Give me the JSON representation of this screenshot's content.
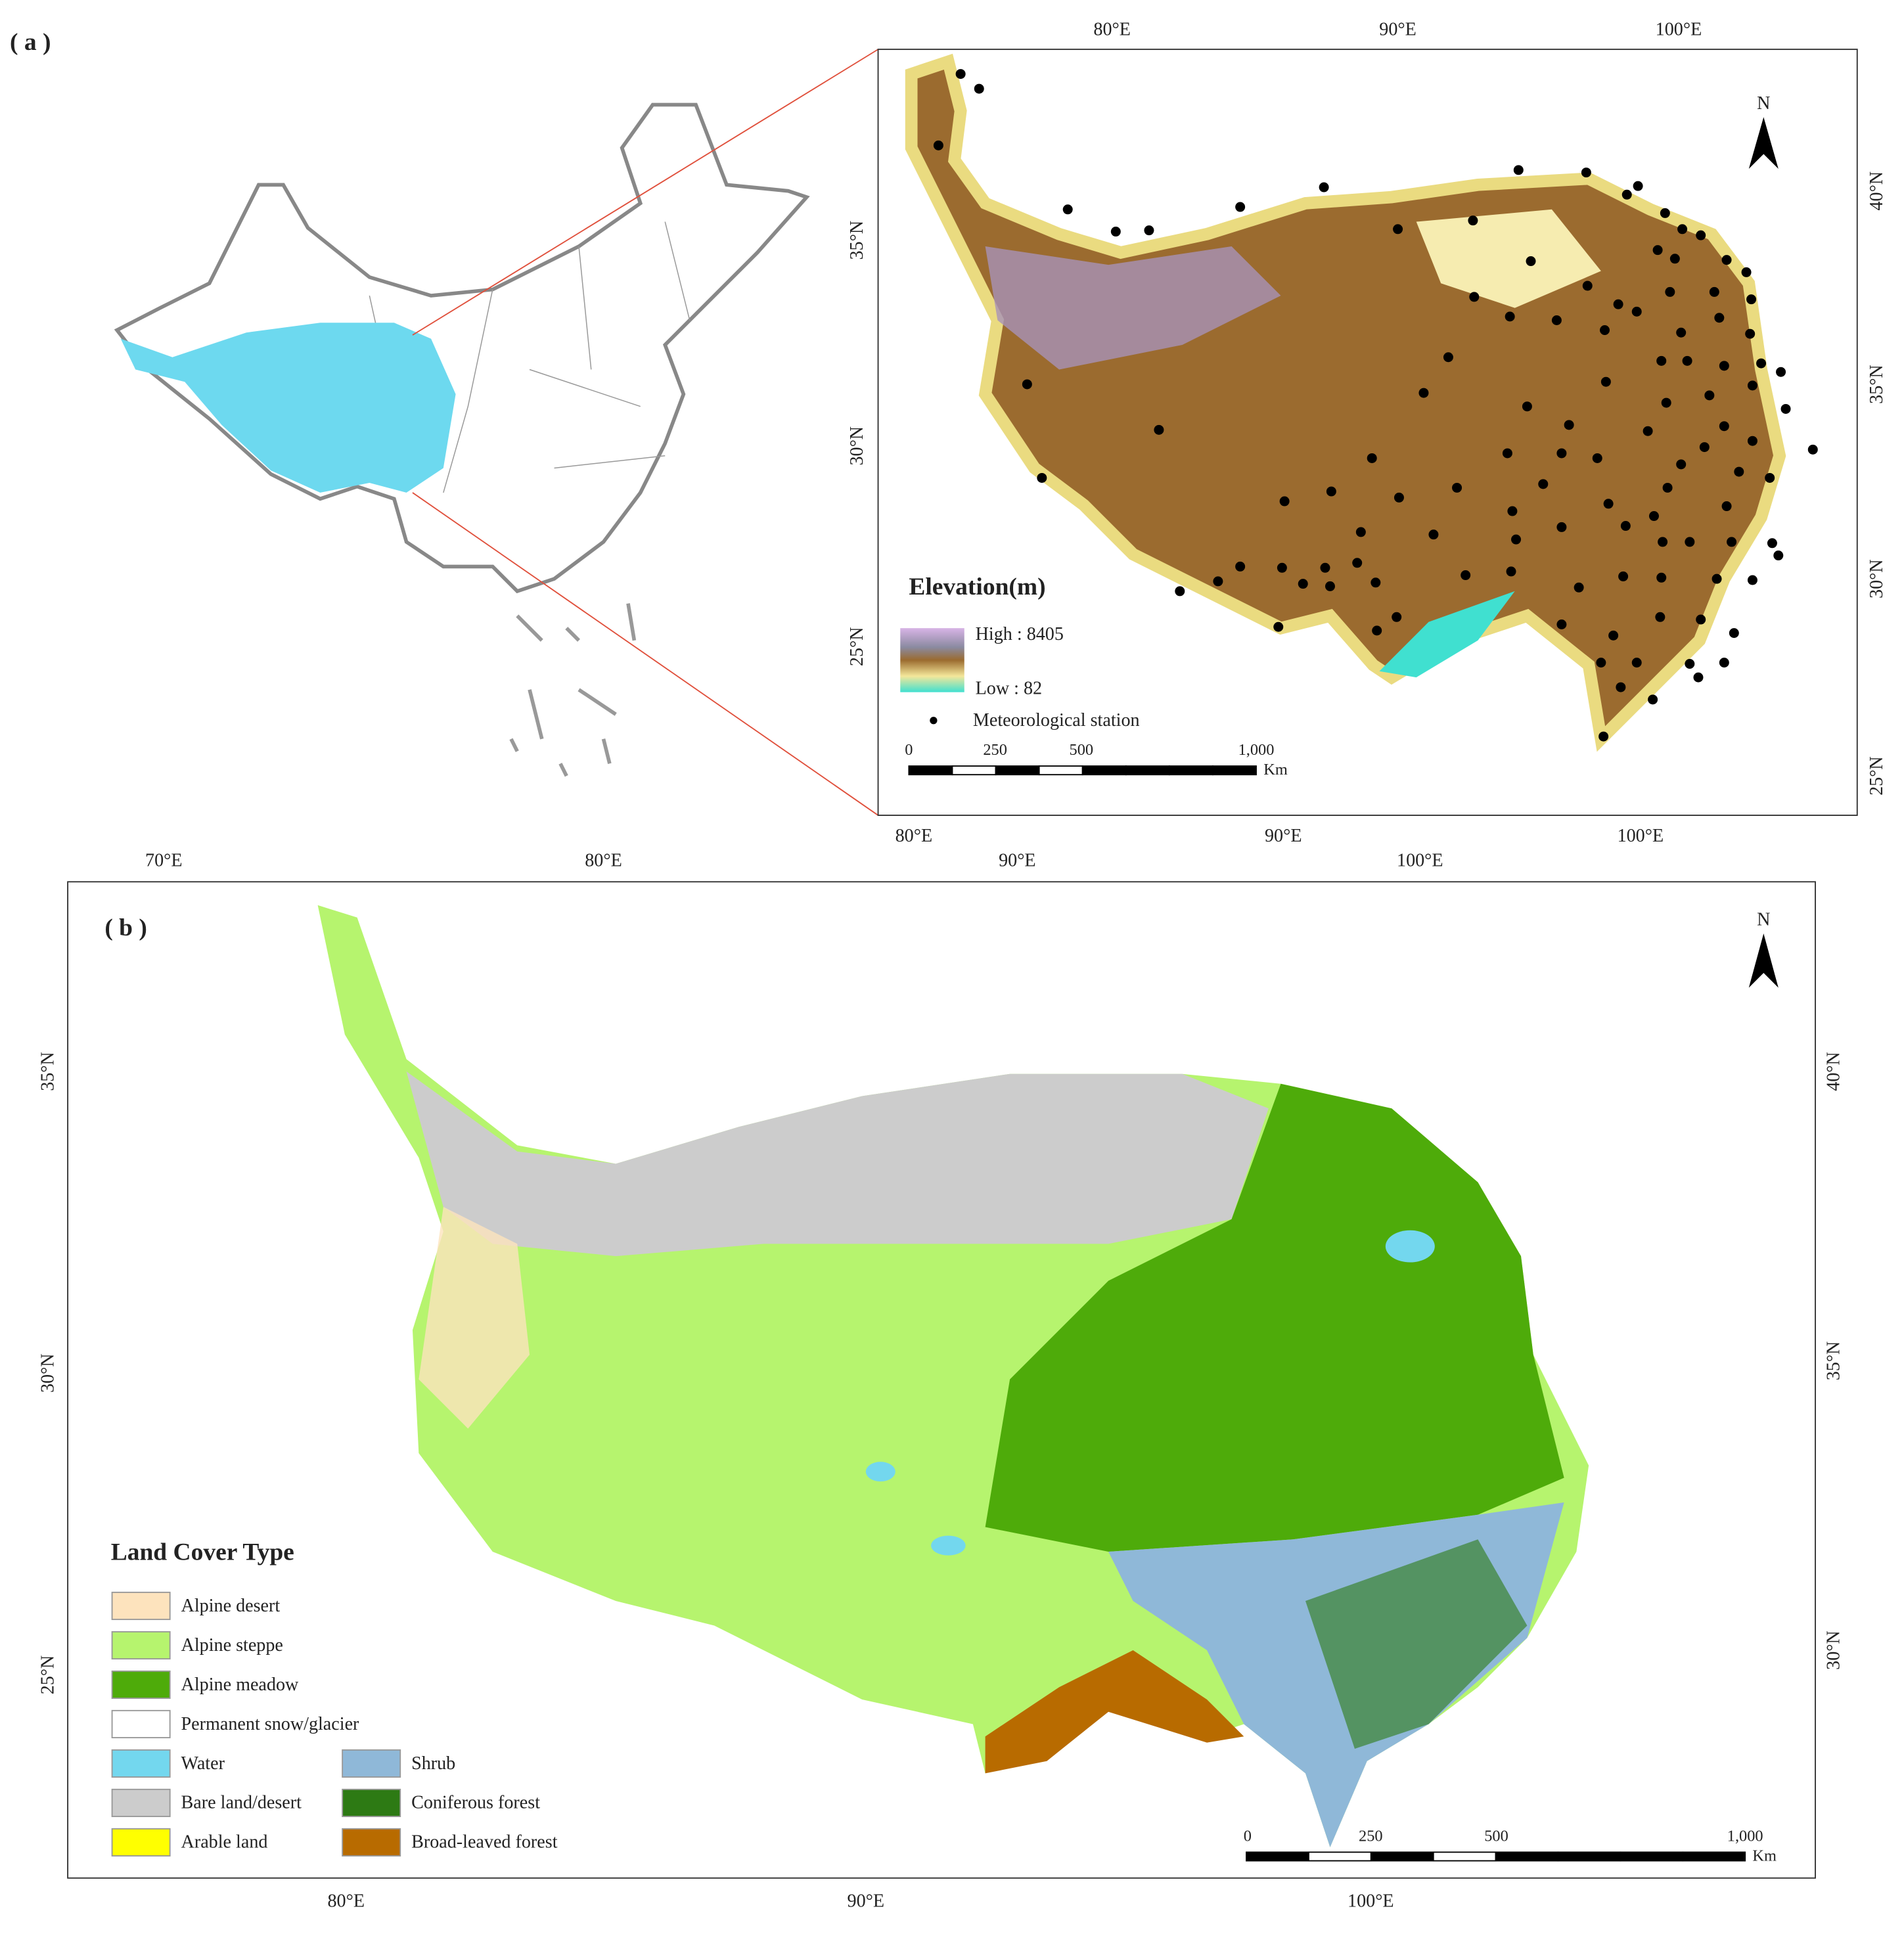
{
  "panel_a": {
    "label": "( a )",
    "china_map": {
      "x_ticks": [
        "70°E",
        "80°E",
        "90°E",
        "100°E"
      ]
    },
    "inset": {
      "top_ticks": [
        "80°E",
        "90°E",
        "100°E"
      ],
      "bottom_ticks": [
        "80°E",
        "90°E",
        "100°E"
      ],
      "left_ticks": [
        "35°N",
        "30°N",
        "25°N"
      ],
      "right_ticks": [
        "40°N",
        "35°N",
        "30°N",
        "25°N"
      ],
      "north": "N",
      "legend": {
        "title": "Elevation(m)",
        "high": "High : 8405",
        "low": "Low : 82",
        "station": "Meteorological station"
      },
      "scale_bar": {
        "labels": [
          "0",
          "250",
          "500",
          "1,000"
        ],
        "unit": "Km"
      }
    }
  },
  "panel_b": {
    "label": "( b )",
    "bottom_ticks": [
      "80°E",
      "90°E",
      "100°E"
    ],
    "left_ticks": [
      "35°N",
      "30°N",
      "25°N"
    ],
    "right_ticks": [
      "40°N",
      "35°N",
      "30°N"
    ],
    "north": "N",
    "legend": {
      "title": "Land Cover Type",
      "items": [
        {
          "label": "Alpine desert",
          "color": "#fde3bd"
        },
        {
          "label": "Alpine steppe",
          "color": "#b6f46e"
        },
        {
          "label": "Alpine meadow",
          "color": "#4eab0a"
        },
        {
          "label": "Permanent snow/glacier",
          "color": "#ffffff"
        },
        {
          "label": "Water",
          "color": "#73d7ee"
        },
        {
          "label": "Bare land/desert",
          "color": "#cccccc"
        },
        {
          "label": "Arable land",
          "color": "#ffff00"
        },
        {
          "label": "Shrub",
          "color": "#8fb8d8"
        },
        {
          "label": "Coniferous forest",
          "color": "#2d7a14"
        },
        {
          "label": "Broad-leaved forest",
          "color": "#b86b00"
        }
      ]
    },
    "scale_bar": {
      "labels": [
        "0",
        "250",
        "500",
        "1,000"
      ],
      "unit": "Km"
    }
  }
}
